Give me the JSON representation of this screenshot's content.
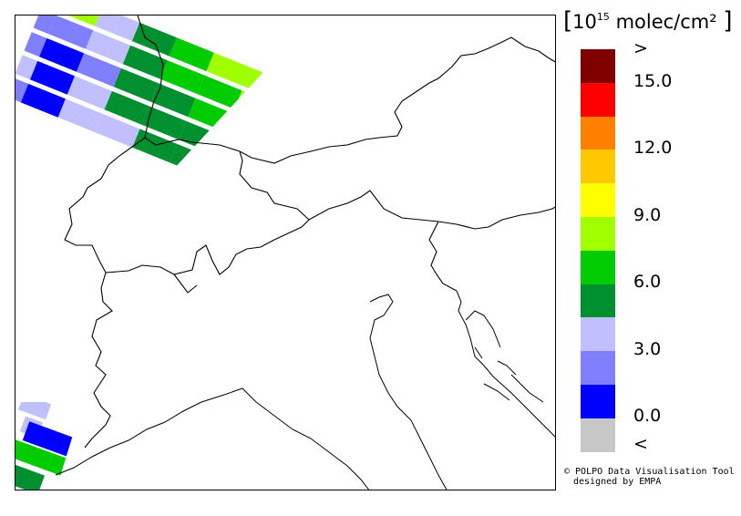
{
  "legend": {
    "title_prefix": "10",
    "title_exponent": "15",
    "title_unit": "molec/cm²",
    "open_bracket": "[",
    "close_bracket": "]",
    "colors": [
      "#800000",
      "#ff0000",
      "#ff8000",
      "#ffc800",
      "#ffff00",
      "#a0ff00",
      "#00cc00",
      "#009030",
      "#c0c0ff",
      "#8080ff",
      "#0000ff",
      "#c8c8c8"
    ],
    "labels": [
      ">",
      "15.0",
      "12.0",
      "9.0",
      "6.0",
      "3.0",
      "0.0",
      "<"
    ]
  },
  "credit": {
    "line1": "© POLPO Data Visualisation Tool",
    "line2": "designed by EMPA"
  }
}
